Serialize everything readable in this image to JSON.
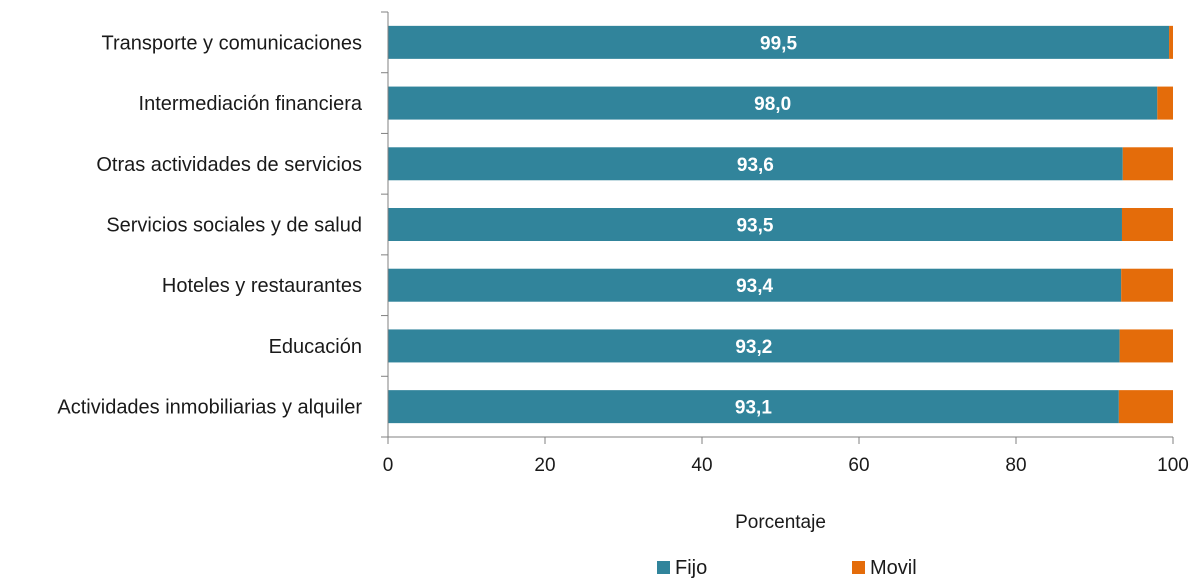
{
  "chart_data": {
    "type": "bar",
    "orientation": "horizontal",
    "stacked": true,
    "title": "",
    "xlabel": "Porcentaje",
    "ylabel": "",
    "xlim": [
      0,
      100
    ],
    "xticks": [
      "0",
      "20",
      "40",
      "60",
      "80",
      "100"
    ],
    "grid": false,
    "legend_position": "bottom",
    "categories": [
      "Transporte y comunicaciones",
      "Intermediación financiera",
      "Otras actividades de servicios",
      "Servicios sociales y de salud",
      "Hoteles y restaurantes",
      "Educación",
      "Actividades inmobiliarias y alquiler"
    ],
    "series": [
      {
        "name": "Fijo",
        "color": "#31849b",
        "values": [
          99.5,
          98.0,
          93.6,
          93.5,
          93.4,
          93.2,
          93.1
        ],
        "labels": [
          "99,5",
          "98,0",
          "93,6",
          "93,5",
          "93,4",
          "93,2",
          "93,1"
        ]
      },
      {
        "name": "Movil",
        "color": "#e46c0a",
        "values": [
          0.5,
          2.0,
          6.4,
          6.5,
          6.6,
          6.8,
          6.9
        ]
      }
    ]
  }
}
